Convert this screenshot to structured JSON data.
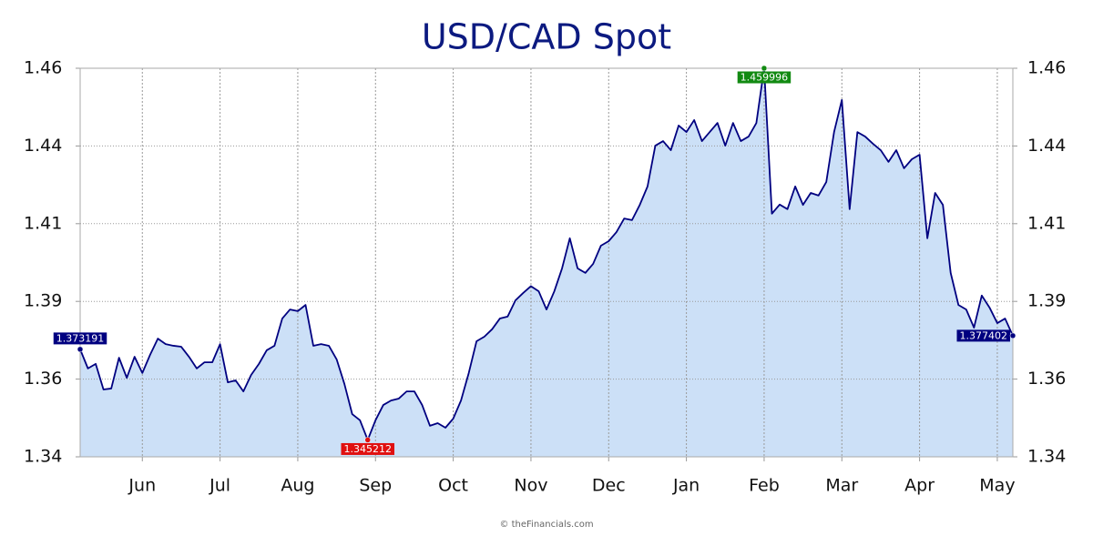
{
  "chart_data": {
    "type": "area",
    "title": "USD/CAD Spot",
    "credit": "© theFinancials.com",
    "color": "#000080",
    "fill_color": "#cce0f7",
    "title_color": "#0c1a80",
    "grid": true,
    "label_colors": {
      "first": "#000080",
      "min": "#e01010",
      "max": "#128a12",
      "last": "#000080"
    },
    "ylim": [
      1.34,
      1.46
    ],
    "yticks": [
      1.34,
      {
        "value": 1.364,
        "label": "1.36"
      },
      {
        "value": 1.388,
        "label": "1.39"
      },
      {
        "value": 1.412,
        "label": "1.41"
      },
      {
        "value": 1.436,
        "label": "1.44"
      },
      1.46
    ],
    "categories": [
      null,
      null,
      null,
      null,
      null,
      null,
      null,
      null,
      "Jun",
      null,
      null,
      null,
      null,
      null,
      null,
      null,
      null,
      null,
      "Jul",
      null,
      null,
      null,
      null,
      null,
      null,
      null,
      null,
      null,
      "Aug",
      null,
      null,
      null,
      null,
      null,
      null,
      null,
      null,
      null,
      "Sep",
      null,
      null,
      null,
      null,
      null,
      null,
      null,
      null,
      null,
      "Oct",
      null,
      null,
      null,
      null,
      null,
      null,
      null,
      null,
      null,
      "Nov",
      null,
      null,
      null,
      null,
      null,
      null,
      null,
      null,
      null,
      "Dec",
      null,
      null,
      null,
      null,
      null,
      null,
      null,
      null,
      null,
      "Jan",
      null,
      null,
      null,
      null,
      null,
      null,
      null,
      null,
      null,
      "Feb",
      null,
      null,
      null,
      null,
      null,
      null,
      null,
      null,
      null,
      "Mar",
      null,
      null,
      null,
      null,
      null,
      null,
      null,
      null,
      null,
      "Apr",
      null,
      null,
      null,
      null,
      null,
      null,
      null,
      null,
      null,
      "May",
      null,
      null
    ],
    "values": [
      1.373191,
      1.3673,
      1.3687,
      1.3608,
      1.3611,
      1.3706,
      1.3644,
      1.3709,
      1.3659,
      1.3715,
      1.3765,
      1.3748,
      1.3743,
      1.374,
      1.3709,
      1.3673,
      1.3692,
      1.3692,
      1.3748,
      1.363,
      1.3636,
      1.3602,
      1.3653,
      1.3687,
      1.3729,
      1.3743,
      1.3827,
      1.3855,
      1.385,
      1.3869,
      1.3743,
      1.3748,
      1.3743,
      1.3701,
      1.3625,
      1.3532,
      1.3513,
      1.345212,
      1.3513,
      1.356,
      1.3574,
      1.358,
      1.3602,
      1.3602,
      1.356,
      1.3496,
      1.3504,
      1.349,
      1.3518,
      1.3574,
      1.3659,
      1.3757,
      1.3771,
      1.3794,
      1.3827,
      1.3833,
      1.3883,
      1.3906,
      1.3927,
      1.3911,
      1.3855,
      1.3911,
      1.3982,
      1.4075,
      1.3982,
      1.3968,
      1.3996,
      1.4052,
      1.4066,
      1.4094,
      1.4136,
      1.4131,
      1.4178,
      1.4235,
      1.4361,
      1.4375,
      1.4347,
      1.4423,
      1.4403,
      1.444,
      1.4375,
      1.4403,
      1.4431,
      1.4361,
      1.4431,
      1.4375,
      1.4389,
      1.4431,
      1.459996,
      1.4151,
      1.4179,
      1.4165,
      1.4235,
      1.4178,
      1.4215,
      1.4207,
      1.4249,
      1.4403,
      1.4502,
      1.4165,
      1.4403,
      1.4389,
      1.4367,
      1.4347,
      1.4311,
      1.4347,
      1.4291,
      1.4319,
      1.4333,
      1.4075,
      1.4215,
      1.4178,
      1.3968,
      1.3869,
      1.3855,
      1.3799,
      1.3898,
      1.3861,
      1.3813,
      1.3827,
      1.377402
    ]
  }
}
